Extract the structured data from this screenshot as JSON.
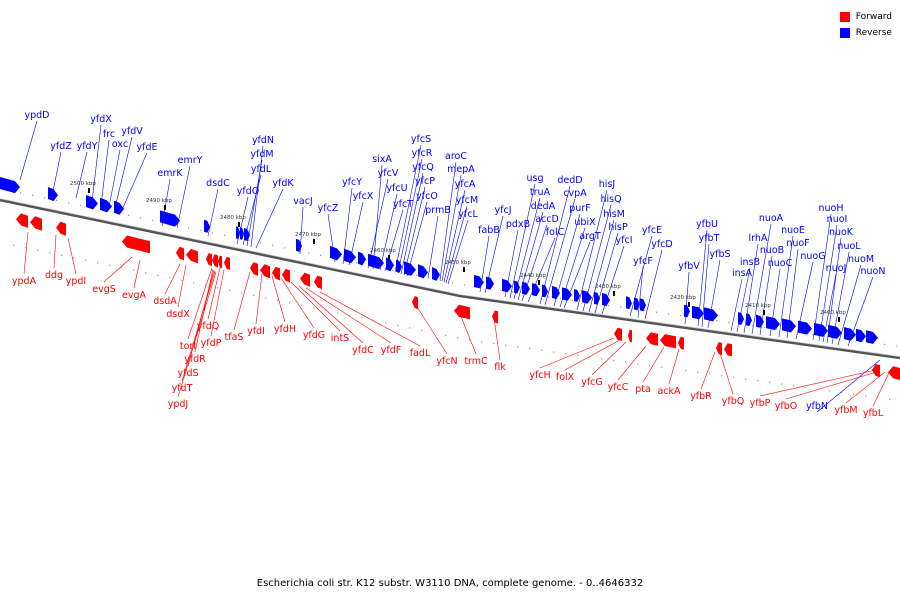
{
  "legend": [
    {
      "label": "Forward",
      "color": "#ff0000"
    },
    {
      "label": "Reverse",
      "color": "#0000ff"
    }
  ],
  "caption": "Escherichia coli str. K12 substr. W3110 DNA, complete genome. - 0..4646332",
  "kbp_ticks": [
    "2500 kbp",
    "2490 kbp",
    "2480 kbp",
    "2470 kbp",
    "2460 kbp",
    "2450 kbp",
    "2440 kbp",
    "2430 kbp",
    "2420 kbp",
    "2410 kbp",
    "2400 kbp"
  ],
  "reverse_genes": [
    "ypdD",
    "yfdZ",
    "yfdY",
    "yfdX",
    "frc",
    "oxc",
    "yfdV",
    "yfdE",
    "emrK",
    "emrY",
    "dsdC",
    "yfdO",
    "yfdL",
    "yfdM",
    "yfdN",
    "yfdK",
    "vacJ",
    "yfcZ",
    "yfcY",
    "yfcX",
    "yfcV",
    "sixA",
    "yfcU",
    "yfcT",
    "yfcS",
    "yfcR",
    "yfcQ",
    "yfcP",
    "yfcO",
    "prmB",
    "aroC",
    "mepA",
    "yfcA",
    "yfcM",
    "yfcL",
    "fabB",
    "yfcJ",
    "pdxB",
    "usg",
    "truA",
    "dedA",
    "accD",
    "folC",
    "dedD",
    "cvpA",
    "purF",
    "ubiX",
    "argT",
    "hisJ",
    "hisQ",
    "hisM",
    "hisP",
    "yfcI",
    "yfcE",
    "yfcF",
    "yfcD",
    "yfbV",
    "yfbU",
    "yfbT",
    "yfbS",
    "insA",
    "insB",
    "lrhA",
    "nuoA",
    "nuoB",
    "nuoC",
    "nuoE",
    "nuoF",
    "nuoG",
    "nuoH",
    "nuoI",
    "nuoJ",
    "nuoK",
    "nuoL",
    "nuoM",
    "nuoN",
    "yfbN"
  ],
  "forward_genes": [
    "ypdA",
    "ddg",
    "ypdI",
    "evgS",
    "evgA",
    "dsdA",
    "dsdX",
    "torI",
    "yfdR",
    "yfdS",
    "yfdT",
    "ypdJ",
    "yfdQ",
    "yfdP",
    "tfaS",
    "yfdI",
    "yfdH",
    "yfdG",
    "intS",
    "yfdC",
    "yfdF",
    "fadL",
    "yfcN",
    "trmC",
    "flk",
    "yfcH",
    "folX",
    "yfcG",
    "yfcC",
    "pta",
    "ackA",
    "yfbR",
    "yfbQ",
    "yfbP",
    "yfbO",
    "yfbM",
    "yfbL"
  ]
}
